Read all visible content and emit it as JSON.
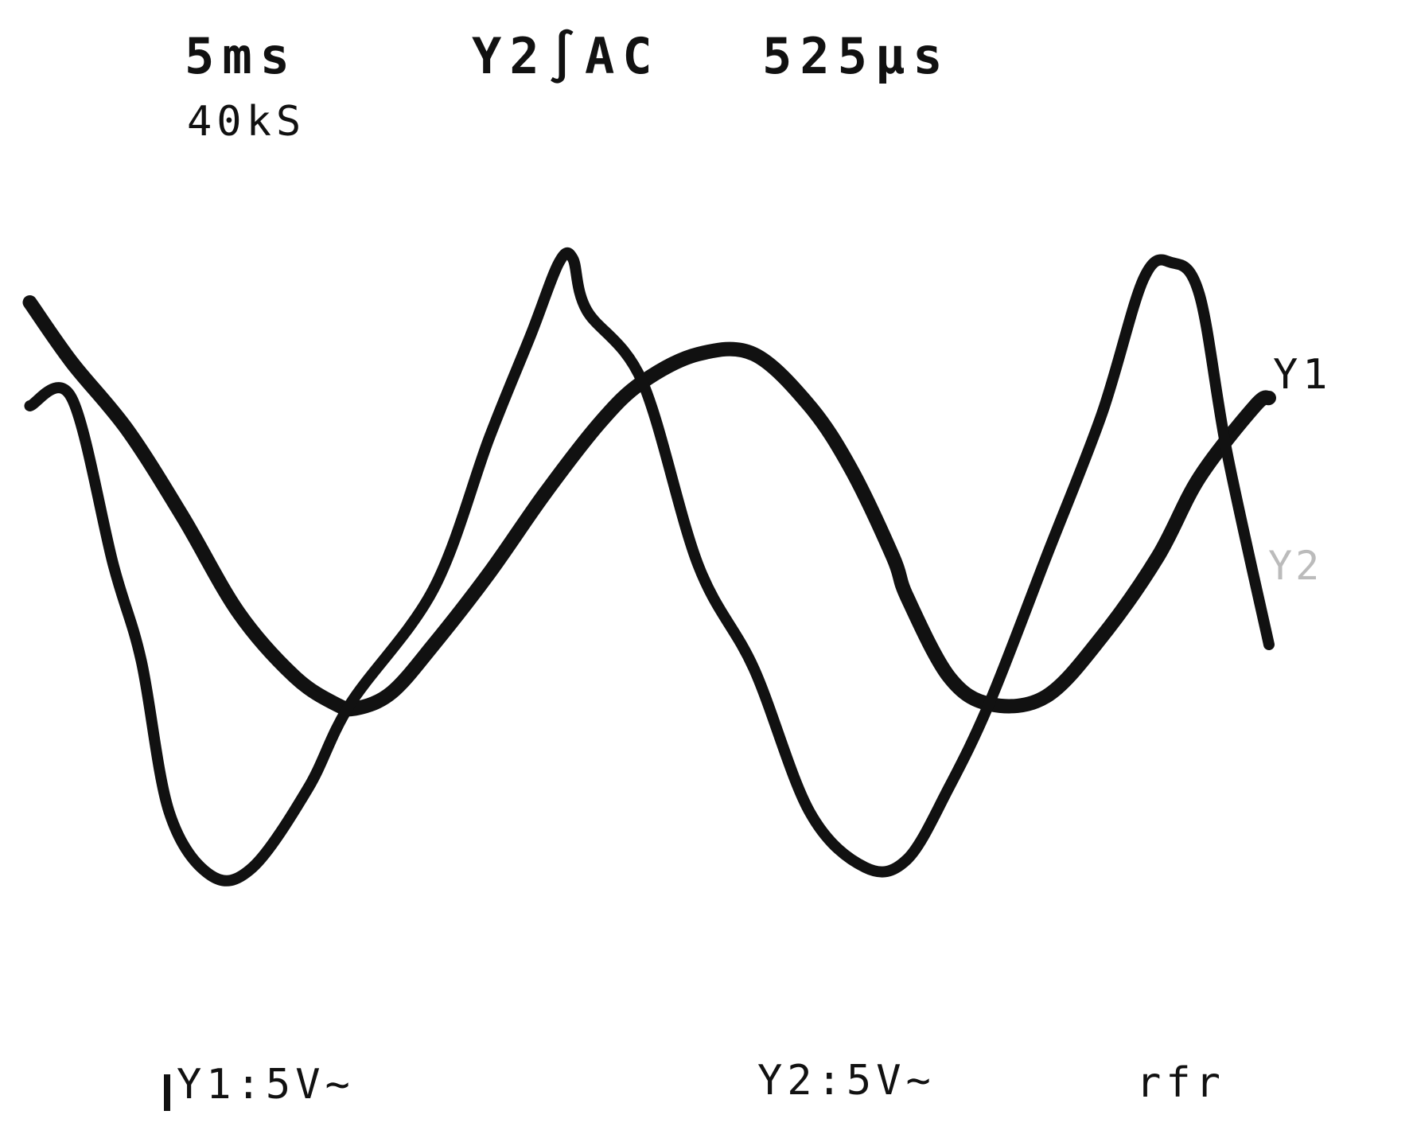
{
  "scope": {
    "timebase": "5ms",
    "sample_rate": "40kS",
    "trigger": "Y2∫AC",
    "trigger_time": "525µs",
    "channel1_scale": "Y1:5V~",
    "channel2_scale": "Y2:5V~",
    "mode": "rfr",
    "trace1_label": "Y1",
    "trace2_label": "Y2",
    "trace_color": "#111111",
    "background_color": "#ffffff"
  },
  "chart_data": {
    "type": "line",
    "title": "",
    "xlabel": "",
    "ylabel": "",
    "grid": false,
    "legend": "labels at right end of traces",
    "x_unit": "divisions",
    "y_unit": "divisions",
    "xlim": [
      0,
      10
    ],
    "ylim": [
      -4,
      4
    ],
    "series": [
      {
        "name": "Y1",
        "x": [
          0.1,
          0.4,
          0.8,
          1.2,
          1.6,
          2.0,
          2.3,
          2.45,
          2.7,
          3.0,
          3.4,
          3.8,
          4.2,
          4.5,
          4.9,
          5.3,
          5.7,
          6.0,
          6.3,
          6.4,
          6.7,
          7.0,
          7.4,
          7.8,
          8.2,
          8.5,
          8.9,
          9.0
        ],
        "y": [
          2.5,
          1.75,
          0.9,
          -0.2,
          -1.4,
          -2.2,
          -2.55,
          -2.6,
          -2.4,
          -1.8,
          -0.9,
          0.1,
          1.0,
          1.5,
          1.85,
          1.85,
          1.2,
          0.4,
          -0.7,
          -1.2,
          -2.2,
          -2.55,
          -2.45,
          -1.7,
          -0.7,
          0.3,
          1.2,
          1.3
        ]
      },
      {
        "name": "Y2",
        "x": [
          0.1,
          0.4,
          0.7,
          0.9,
          1.1,
          1.4,
          1.7,
          2.1,
          2.4,
          3.0,
          3.4,
          3.7,
          3.9,
          4.0,
          4.1,
          4.5,
          4.9,
          5.3,
          5.7,
          6.1,
          6.4,
          6.7,
          7.0,
          7.4,
          7.8,
          8.1,
          8.3,
          8.5,
          8.7,
          9.0
        ],
        "y": [
          1.2,
          1.3,
          -0.8,
          -2.0,
          -3.9,
          -4.7,
          -4.6,
          -3.6,
          -2.55,
          -1.1,
          0.8,
          2.1,
          3.0,
          3.05,
          2.4,
          1.5,
          -0.8,
          -2.1,
          -3.9,
          -4.6,
          -4.5,
          -3.6,
          -2.5,
          -0.7,
          1.1,
          2.8,
          3.0,
          2.6,
          0.6,
          -1.8
        ]
      }
    ]
  }
}
